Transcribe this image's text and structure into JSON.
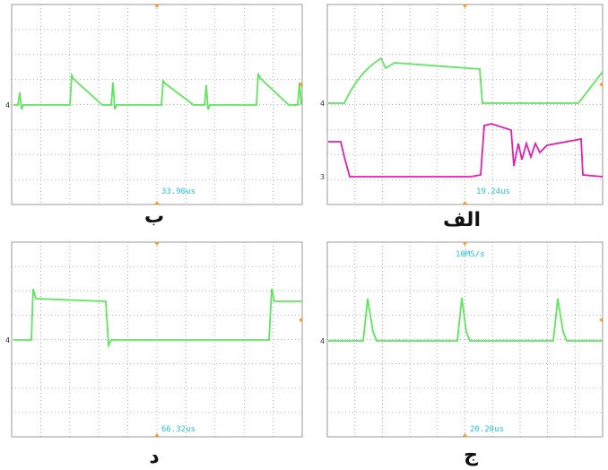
{
  "panels": [
    {
      "label": "ب",
      "timebase": "33.90us",
      "channels": [
        "4"
      ]
    },
    {
      "label": "الف",
      "timebase": "19.24us",
      "channels": [
        "4",
        "3"
      ]
    },
    {
      "label": "د",
      "timebase": "66.32us",
      "channels": [
        "4"
      ]
    },
    {
      "label": "ج",
      "timebase": "20.20us",
      "sample_rate": "10MS/s",
      "channels": [
        "4"
      ]
    }
  ]
}
